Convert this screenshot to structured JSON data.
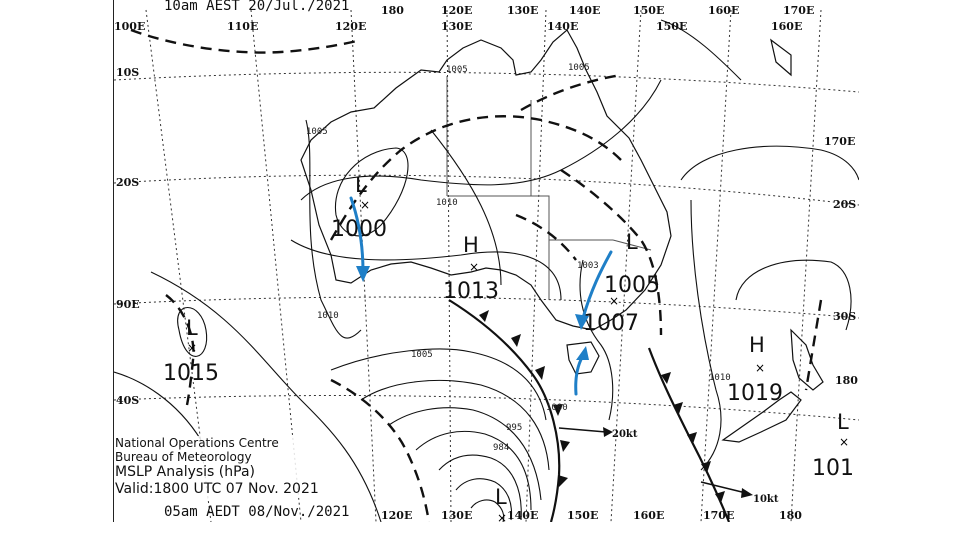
{
  "chart": {
    "header_time": "10am AEST 20/Jul./2021",
    "footer_time": "05am AEDT 08/Nov./2021",
    "organisation": "National Operations Centre",
    "bureau": "Bureau of Meteorology",
    "product": "MSLP Analysis (hPa)",
    "valid": "Valid:1800 UTC 07 Nov. 2021"
  },
  "grid_labels": {
    "top": [
      "100E",
      "110E",
      "120E",
      "130E",
      "140E",
      "150E",
      "160E",
      "170E",
      "180",
      "120E",
      "130E",
      "140E",
      "150E",
      "160E"
    ],
    "bottom": [
      "120E",
      "130E",
      "140E",
      "150E",
      "160E",
      "170E",
      "180"
    ],
    "left": [
      "10S",
      "20S",
      "90E",
      "40S"
    ],
    "right": [
      "170E",
      "20S",
      "30S",
      "180"
    ]
  },
  "systems": [
    {
      "type": "L",
      "pressure": "1000"
    },
    {
      "type": "H",
      "pressure": "1013"
    },
    {
      "type": "L",
      "pressure": "1005"
    },
    {
      "type": "L",
      "pressure": "1007"
    },
    {
      "type": "H",
      "pressure": "1019"
    },
    {
      "type": "L",
      "pressure": "1015"
    },
    {
      "type": "L",
      "pressure": "101"
    },
    {
      "type": "L",
      "pressure": ""
    }
  ],
  "isobar_labels": [
    "1005",
    "1005",
    "1003",
    "1010",
    "1010",
    "1010",
    "1000",
    "995",
    "984",
    "1005",
    "1005"
  ],
  "wind_scale": [
    "20kt",
    "10kt"
  ],
  "colors": {
    "annotation_arrows": "#1f7fc7",
    "lines": "#111111",
    "background": "#ffffff"
  },
  "annotations": "hand-drawn blue arrows marking wind direction near the lows"
}
